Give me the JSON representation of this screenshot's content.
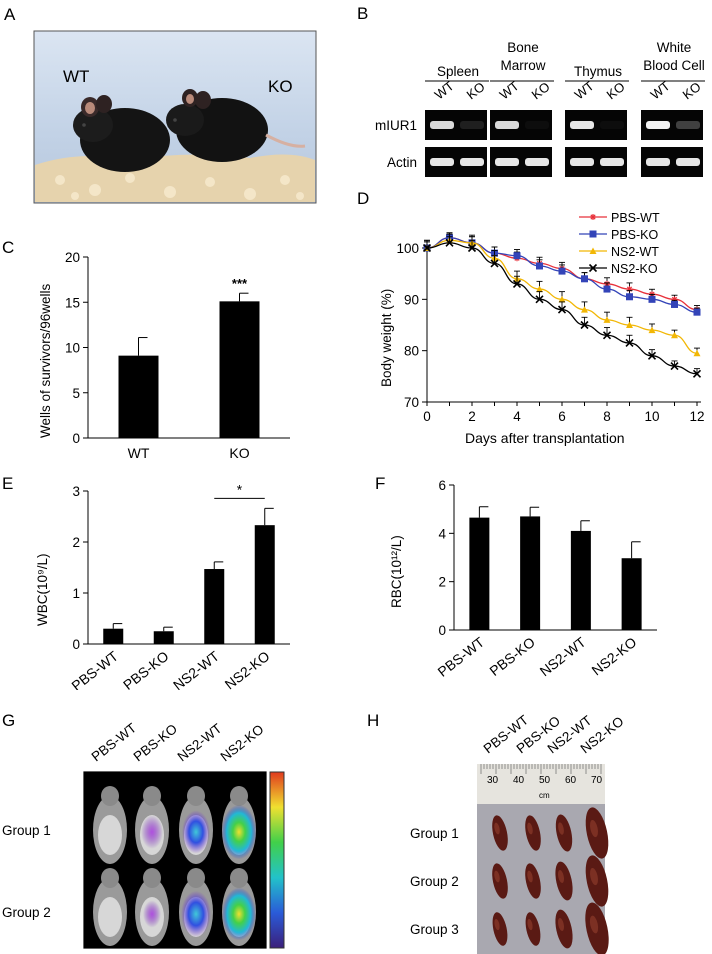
{
  "panels": {
    "A": {
      "letter": "A",
      "photo_labels": {
        "wt": "WT",
        "ko": "KO"
      },
      "colors": {
        "background": "#c9d7ea",
        "bedding": "#e8d7b8"
      }
    },
    "B": {
      "letter": "B",
      "columns": [
        {
          "title": [
            "Spleen"
          ],
          "lanes": [
            "WT",
            "KO"
          ]
        },
        {
          "title": [
            "Bone",
            "Marrow"
          ],
          "lanes": [
            "WT",
            "KO"
          ]
        },
        {
          "title": [
            "Thymus"
          ],
          "lanes": [
            "WT",
            "KO"
          ]
        },
        {
          "title": [
            "White",
            "Blood Cell"
          ],
          "lanes": [
            "WT",
            "KO"
          ]
        }
      ],
      "rows": [
        "mIUR1",
        "Actin"
      ],
      "band_intensity": {
        "mIUR1": [
          [
            0.85,
            0.12
          ],
          [
            0.85,
            0.05
          ],
          [
            0.9,
            0.05
          ],
          [
            0.95,
            0.25
          ]
        ],
        "Actin": [
          [
            0.9,
            0.9
          ],
          [
            0.9,
            0.9
          ],
          [
            0.9,
            0.9
          ],
          [
            0.9,
            0.9
          ]
        ]
      }
    },
    "G": {
      "letter": "G",
      "lanes": [
        "PBS-WT",
        "PBS-KO",
        "NS2-WT",
        "NS2-KO"
      ],
      "groups": [
        "Group 1",
        "Group 2"
      ],
      "signal_level": [
        [
          0.05,
          0.3,
          0.6,
          0.95
        ],
        [
          0.0,
          0.1,
          0.7,
          0.9
        ]
      ]
    },
    "H": {
      "letter": "H",
      "lanes": [
        "PBS-WT",
        "PBS-KO",
        "NS2-WT",
        "NS2-KO"
      ],
      "groups": [
        "Group 1",
        "Group 2",
        "Group 3"
      ],
      "ruler_labels": [
        "30",
        "40",
        "50",
        "60",
        "70"
      ],
      "ruler_unit": "cm",
      "spleen_size": [
        [
          1.0,
          1.0,
          1.05,
          1.45
        ],
        [
          1.0,
          1.0,
          1.1,
          1.45
        ],
        [
          0.95,
          0.95,
          1.1,
          1.5
        ]
      ]
    }
  },
  "chart_data": [
    {
      "id": "C",
      "letter": "C",
      "type": "bar",
      "categories": [
        "WT",
        "KO"
      ],
      "values": [
        9.1,
        15.1
      ],
      "errors": [
        2.0,
        0.9
      ],
      "significance": [
        "",
        "***"
      ],
      "ylabel": "Wells of survivors/96wells",
      "ylim": [
        0,
        20
      ],
      "yticks": [
        0,
        5,
        10,
        15,
        20
      ],
      "bar_color": "#000000"
    },
    {
      "id": "D",
      "letter": "D",
      "type": "line",
      "x": [
        0,
        1,
        2,
        3,
        4,
        5,
        6,
        7,
        8,
        9,
        10,
        11,
        12
      ],
      "series": [
        {
          "name": "PBS-WT",
          "color": "#e8313a",
          "marker": "asterisk",
          "values": [
            100,
            102,
            101,
            99,
            98,
            97,
            96,
            94,
            93,
            92,
            91,
            90,
            88
          ]
        },
        {
          "name": "PBS-KO",
          "color": "#3344b8",
          "marker": "square",
          "values": [
            100,
            102,
            101,
            99,
            98.5,
            96.5,
            95.5,
            94,
            92,
            90.5,
            90,
            89,
            87.5
          ]
        },
        {
          "name": "NS2-WT",
          "color": "#f2b705",
          "marker": "triangle",
          "values": [
            100,
            101.5,
            101,
            98,
            94,
            92,
            90,
            88,
            86,
            85,
            84,
            83,
            79.5
          ]
        },
        {
          "name": "NS2-KO",
          "color": "#000000",
          "marker": "x",
          "values": [
            100,
            101,
            100,
            97,
            93,
            90,
            88,
            85,
            83,
            81.5,
            79,
            77,
            75.5
          ]
        }
      ],
      "errors": [
        1.5,
        1.2,
        1.5,
        1.5,
        1.5,
        1.5,
        1.5,
        1.5,
        1.5,
        1.5,
        1.2,
        1.0,
        1.0
      ],
      "xlabel": "Days after transplantation",
      "ylabel": "Body weight (%)",
      "xlim": [
        0,
        12
      ],
      "ylim": [
        70,
        100
      ],
      "xticks": [
        0,
        2,
        4,
        6,
        8,
        10,
        12
      ],
      "yticks": [
        70,
        80,
        90,
        100
      ],
      "legend": "top-right"
    },
    {
      "id": "E",
      "letter": "E",
      "type": "bar",
      "categories": [
        "PBS-WT",
        "PBS-KO",
        "NS2-WT",
        "NS2-KO"
      ],
      "values": [
        0.3,
        0.25,
        1.47,
        2.33
      ],
      "errors": [
        0.1,
        0.08,
        0.14,
        0.33
      ],
      "significance_bracket": {
        "from": 2,
        "to": 3,
        "label": "*"
      },
      "ylabel": "WBC(10⁹/L)",
      "ylim": [
        0,
        3
      ],
      "yticks": [
        0,
        1,
        2,
        3
      ],
      "bar_color": "#000000"
    },
    {
      "id": "F",
      "letter": "F",
      "type": "bar",
      "categories": [
        "PBS-WT",
        "PBS-KO",
        "NS2-WT",
        "NS2-KO"
      ],
      "values": [
        4.65,
        4.7,
        4.1,
        2.97
      ],
      "errors": [
        0.45,
        0.38,
        0.42,
        0.68
      ],
      "ylabel": "RBC(10¹²/L)",
      "ylim": [
        0,
        6
      ],
      "yticks": [
        0,
        2,
        4,
        6
      ],
      "bar_color": "#000000"
    }
  ]
}
